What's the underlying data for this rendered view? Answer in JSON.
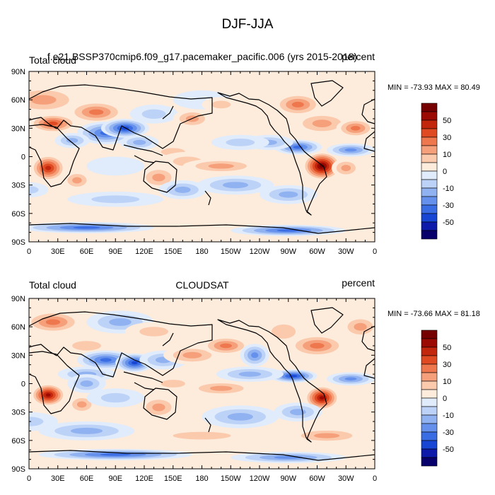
{
  "figure_title": "DJF-JJA",
  "colorbar_levels": [
    "50",
    "30",
    "10",
    "0",
    "-10",
    "-30",
    "-50"
  ],
  "colors": {
    "palette": [
      "#08006b",
      "#0d1aaa",
      "#1846d4",
      "#3a6de4",
      "#6591ec",
      "#91b2f1",
      "#bdd2f7",
      "#e0ecfc",
      "#fdebdc",
      "#fbc9ac",
      "#f5a07b",
      "#ee774e",
      "#e04a22",
      "#c2260d",
      "#9b0a03",
      "#760000"
    ],
    "continents": "#000000"
  },
  "chart_data": [
    {
      "type": "heatmap",
      "left_title": "Total cloud",
      "center_title": "f.e21.BSSP370cmip6.f09_g17.pacemaker_pacific.006 (yrs 2015-2018)",
      "right_title": "percent",
      "min_max_text": "MIN = -73.93 MAX =  80.49",
      "min": -73.93,
      "max": 80.49,
      "x_ticks": [
        "0",
        "30E",
        "60E",
        "90E",
        "120E",
        "150E",
        "180",
        "150W",
        "120W",
        "90W",
        "60W",
        "30W",
        "0"
      ],
      "y_ticks": [
        "90N",
        "60N",
        "30N",
        "0",
        "30S",
        "60S",
        "90S"
      ],
      "xlim": [
        0,
        360
      ],
      "ylim": [
        -90,
        90
      ],
      "field": [
        {
          "lon": 15,
          "lat": 60,
          "value": 25,
          "rx": 40,
          "ry": 15
        },
        {
          "lon": 70,
          "lat": 47,
          "value": 35,
          "rx": 30,
          "ry": 12
        },
        {
          "lon": 25,
          "lat": 35,
          "value": 45,
          "rx": 25,
          "ry": 10
        },
        {
          "lon": 80,
          "lat": 25,
          "value": -45,
          "rx": 30,
          "ry": 12
        },
        {
          "lon": 100,
          "lat": 30,
          "value": -55,
          "rx": 25,
          "ry": 10
        },
        {
          "lon": 45,
          "lat": 17,
          "value": -30,
          "rx": 18,
          "ry": 8
        },
        {
          "lon": 130,
          "lat": 45,
          "value": -20,
          "rx": 25,
          "ry": 10
        },
        {
          "lon": 115,
          "lat": 15,
          "value": -30,
          "rx": 20,
          "ry": 8
        },
        {
          "lon": 150,
          "lat": 5,
          "value": 20,
          "rx": 25,
          "ry": 8
        },
        {
          "lon": 170,
          "lat": 40,
          "value": 25,
          "rx": 20,
          "ry": 10
        },
        {
          "lon": 180,
          "lat": 60,
          "value": -10,
          "rx": 30,
          "ry": 10
        },
        {
          "lon": 200,
          "lat": 55,
          "value": 15,
          "rx": 20,
          "ry": 8
        },
        {
          "lon": 255,
          "lat": 50,
          "value": 10,
          "rx": 20,
          "ry": 15
        },
        {
          "lon": 280,
          "lat": 55,
          "value": 40,
          "rx": 25,
          "ry": 12
        },
        {
          "lon": 305,
          "lat": 35,
          "value": 30,
          "rx": 30,
          "ry": 12
        },
        {
          "lon": 340,
          "lat": 30,
          "value": 35,
          "rx": 20,
          "ry": 10
        },
        {
          "lon": 280,
          "lat": 10,
          "value": -50,
          "rx": 25,
          "ry": 8
        },
        {
          "lon": 250,
          "lat": 15,
          "value": -25,
          "rx": 25,
          "ry": 8
        },
        {
          "lon": 335,
          "lat": 7,
          "value": -40,
          "rx": 25,
          "ry": 7
        },
        {
          "lon": 220,
          "lat": 15,
          "value": -20,
          "rx": 30,
          "ry": 8
        },
        {
          "lon": 165,
          "lat": -5,
          "value": 15,
          "rx": 30,
          "ry": 10
        },
        {
          "lon": 200,
          "lat": -10,
          "value": 25,
          "rx": 40,
          "ry": 8
        },
        {
          "lon": 215,
          "lat": -30,
          "value": -25,
          "rx": 40,
          "ry": 10
        },
        {
          "lon": 20,
          "lat": -12,
          "value": 60,
          "rx": 18,
          "ry": 14
        },
        {
          "lon": 50,
          "lat": -25,
          "value": 25,
          "rx": 15,
          "ry": 10
        },
        {
          "lon": 305,
          "lat": -10,
          "value": 75,
          "rx": 20,
          "ry": 15
        },
        {
          "lon": 330,
          "lat": -12,
          "value": 30,
          "rx": 15,
          "ry": 10
        },
        {
          "lon": 135,
          "lat": -22,
          "value": 25,
          "rx": 20,
          "ry": 12
        },
        {
          "lon": 160,
          "lat": -35,
          "value": -25,
          "rx": 25,
          "ry": 10
        },
        {
          "lon": 90,
          "lat": -10,
          "value": -10,
          "rx": 30,
          "ry": 10
        },
        {
          "lon": 0,
          "lat": -35,
          "value": -20,
          "rx": 20,
          "ry": 8
        },
        {
          "lon": 270,
          "lat": -40,
          "value": -30,
          "rx": 30,
          "ry": 10
        },
        {
          "lon": 90,
          "lat": -45,
          "value": -15,
          "rx": 50,
          "ry": 8
        },
        {
          "lon": 180,
          "lat": -55,
          "value": 10,
          "rx": 60,
          "ry": 8
        },
        {
          "lon": 60,
          "lat": -75,
          "value": -45,
          "rx": 70,
          "ry": 6
        },
        {
          "lon": 270,
          "lat": -78,
          "value": -45,
          "rx": 60,
          "ry": 6
        }
      ]
    },
    {
      "type": "heatmap",
      "left_title": "Total cloud",
      "center_title": "CLOUDSAT",
      "right_title": "percent",
      "min_max_text": "MIN = -73.66 MAX =  81.18",
      "min": -73.66,
      "max": 81.18,
      "x_ticks": [
        "0",
        "30E",
        "60E",
        "90E",
        "120E",
        "150E",
        "180",
        "150W",
        "120W",
        "90W",
        "60W",
        "30W",
        "0"
      ],
      "y_ticks": [
        "90N",
        "60N",
        "30N",
        "0",
        "30S",
        "60S",
        "90S"
      ],
      "xlim": [
        0,
        360
      ],
      "ylim": [
        -90,
        90
      ],
      "field": [
        {
          "lon": 25,
          "lat": 65,
          "value": 40,
          "rx": 30,
          "ry": 12
        },
        {
          "lon": 95,
          "lat": 65,
          "value": -25,
          "rx": 35,
          "ry": 12
        },
        {
          "lon": 130,
          "lat": 55,
          "value": 20,
          "rx": 30,
          "ry": 10
        },
        {
          "lon": 60,
          "lat": 40,
          "value": 20,
          "rx": 30,
          "ry": 10
        },
        {
          "lon": 80,
          "lat": 25,
          "value": -45,
          "rx": 30,
          "ry": 10
        },
        {
          "lon": 110,
          "lat": 22,
          "value": -55,
          "rx": 20,
          "ry": 10
        },
        {
          "lon": 140,
          "lat": 25,
          "value": -25,
          "rx": 25,
          "ry": 10
        },
        {
          "lon": 60,
          "lat": 10,
          "value": -25,
          "rx": 30,
          "ry": 8
        },
        {
          "lon": 170,
          "lat": 30,
          "value": 30,
          "rx": 30,
          "ry": 10
        },
        {
          "lon": 205,
          "lat": 40,
          "value": 35,
          "rx": 25,
          "ry": 10
        },
        {
          "lon": 235,
          "lat": 30,
          "value": -35,
          "rx": 15,
          "ry": 12
        },
        {
          "lon": 265,
          "lat": 55,
          "value": 15,
          "rx": 25,
          "ry": 15
        },
        {
          "lon": 300,
          "lat": 40,
          "value": 40,
          "rx": 30,
          "ry": 12
        },
        {
          "lon": 345,
          "lat": 60,
          "value": 30,
          "rx": 20,
          "ry": 12
        },
        {
          "lon": 275,
          "lat": 8,
          "value": -55,
          "rx": 25,
          "ry": 7
        },
        {
          "lon": 335,
          "lat": 5,
          "value": -40,
          "rx": 25,
          "ry": 7
        },
        {
          "lon": 230,
          "lat": 10,
          "value": -25,
          "rx": 35,
          "ry": 8
        },
        {
          "lon": 150,
          "lat": 0,
          "value": 20,
          "rx": 25,
          "ry": 8
        },
        {
          "lon": 200,
          "lat": -5,
          "value": 30,
          "rx": 35,
          "ry": 8
        },
        {
          "lon": 20,
          "lat": -12,
          "value": 65,
          "rx": 18,
          "ry": 12
        },
        {
          "lon": 60,
          "lat": 0,
          "value": -25,
          "rx": 20,
          "ry": 10
        },
        {
          "lon": 55,
          "lat": -22,
          "value": 25,
          "rx": 15,
          "ry": 10
        },
        {
          "lon": 90,
          "lat": -15,
          "value": -15,
          "rx": 30,
          "ry": 10
        },
        {
          "lon": 135,
          "lat": -25,
          "value": 30,
          "rx": 20,
          "ry": 12
        },
        {
          "lon": 305,
          "lat": -15,
          "value": 70,
          "rx": 18,
          "ry": 13
        },
        {
          "lon": 280,
          "lat": -30,
          "value": -25,
          "rx": 25,
          "ry": 10
        },
        {
          "lon": 220,
          "lat": -35,
          "value": -25,
          "rx": 40,
          "ry": 12
        },
        {
          "lon": 0,
          "lat": -40,
          "value": -20,
          "rx": 30,
          "ry": 10
        },
        {
          "lon": 60,
          "lat": -50,
          "value": -30,
          "rx": 50,
          "ry": 10
        },
        {
          "lon": 180,
          "lat": -55,
          "value": 15,
          "rx": 60,
          "ry": 8
        },
        {
          "lon": 310,
          "lat": -55,
          "value": 25,
          "rx": 40,
          "ry": 8
        },
        {
          "lon": 90,
          "lat": -75,
          "value": -45,
          "rx": 80,
          "ry": 6
        },
        {
          "lon": 270,
          "lat": -78,
          "value": -40,
          "rx": 60,
          "ry": 6
        }
      ]
    }
  ]
}
